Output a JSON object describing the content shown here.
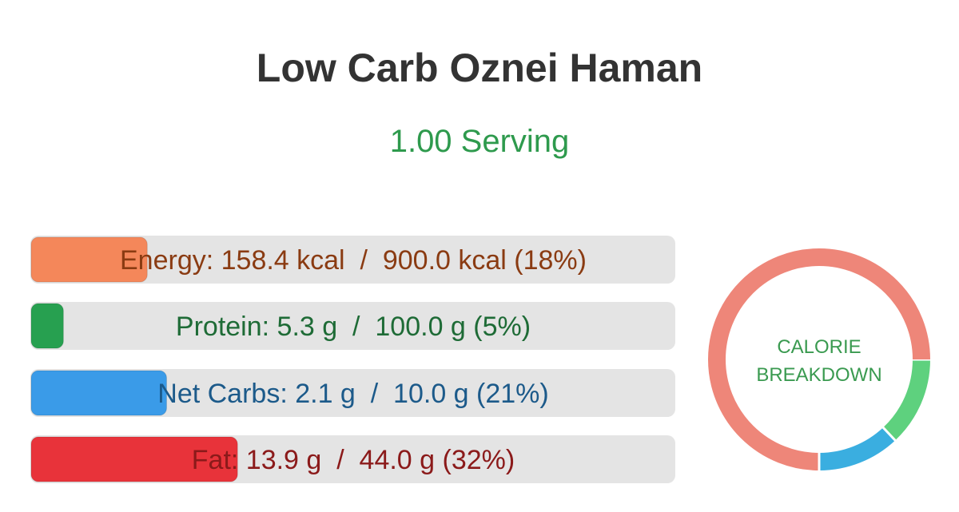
{
  "title": "Low Carb Oznei Haman",
  "serving": "1.00 Serving",
  "nutrients": [
    {
      "label": "Energy: 158.4 kcal  /  900.0 kcal (18%)",
      "value": 18,
      "color": "#f4875a",
      "text_color": "#8a3b12"
    },
    {
      "label": "Protein: 5.3 g  /  100.0 g (5%)",
      "value": 5,
      "color": "#27a050",
      "text_color": "#1e6b36"
    },
    {
      "label": "Net Carbs: 2.1 g  /  10.0 g (21%)",
      "value": 21,
      "color": "#3a9be8",
      "text_color": "#1c5a8a"
    },
    {
      "label": "Fat: 13.9 g  /  44.0 g (32%)",
      "value": 32,
      "color": "#e8333a",
      "text_color": "#8b1a1a"
    }
  ],
  "calorie_breakdown": {
    "label": [
      "CALORIE",
      "BREAKDOWN"
    ],
    "segments": [
      {
        "color": "#5ed17e",
        "value": 13
      },
      {
        "color": "#3aaee0",
        "value": 12
      },
      {
        "color": "#ee8679",
        "value": 75
      }
    ]
  }
}
